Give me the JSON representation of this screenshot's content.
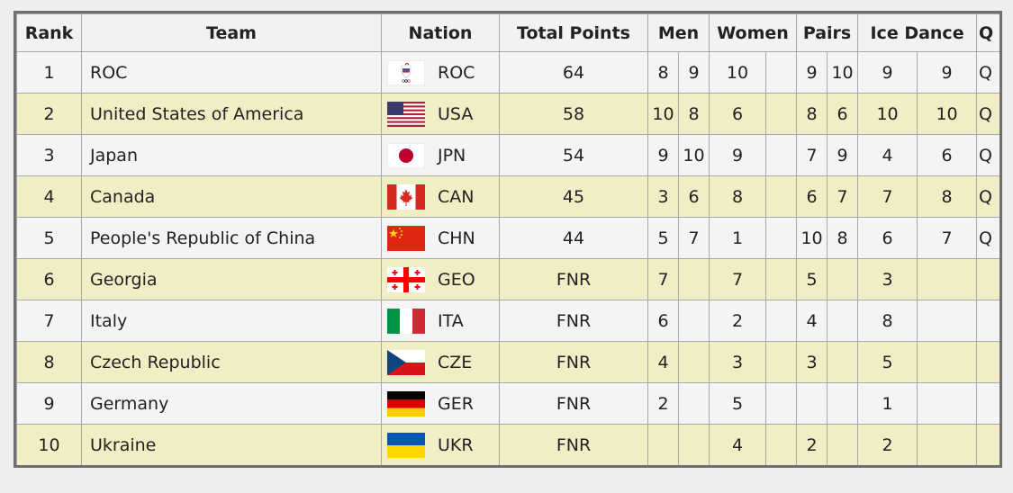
{
  "headers": {
    "rank": "Rank",
    "team": "Team",
    "nation": "Nation",
    "total": "Total Points",
    "men": "Men",
    "women": "Women",
    "pairs": "Pairs",
    "ice_dance": "Ice Dance",
    "q": "Q"
  },
  "rows": [
    {
      "rank": "1",
      "team": "ROC",
      "flag": "roc-flag-icon",
      "code": "ROC",
      "total": "64",
      "men1": "8",
      "men2": "9",
      "women1": "10",
      "women2": "",
      "pairs1": "9",
      "pairs2": "10",
      "ice1": "9",
      "ice2": "9",
      "q": "Q"
    },
    {
      "rank": "2",
      "team": "United States of America",
      "flag": "usa-flag-icon",
      "code": "USA",
      "total": "58",
      "men1": "10",
      "men2": "8",
      "women1": "6",
      "women2": "",
      "pairs1": "8",
      "pairs2": "6",
      "ice1": "10",
      "ice2": "10",
      "q": "Q"
    },
    {
      "rank": "3",
      "team": "Japan",
      "flag": "jpn-flag-icon",
      "code": "JPN",
      "total": "54",
      "men1": "9",
      "men2": "10",
      "women1": "9",
      "women2": "",
      "pairs1": "7",
      "pairs2": "9",
      "ice1": "4",
      "ice2": "6",
      "q": "Q"
    },
    {
      "rank": "4",
      "team": "Canada",
      "flag": "can-flag-icon",
      "code": "CAN",
      "total": "45",
      "men1": "3",
      "men2": "6",
      "women1": "8",
      "women2": "",
      "pairs1": "6",
      "pairs2": "7",
      "ice1": "7",
      "ice2": "8",
      "q": "Q"
    },
    {
      "rank": "5",
      "team": "People's Republic of China",
      "flag": "chn-flag-icon",
      "code": "CHN",
      "total": "44",
      "men1": "5",
      "men2": "7",
      "women1": "1",
      "women2": "",
      "pairs1": "10",
      "pairs2": "8",
      "ice1": "6",
      "ice2": "7",
      "q": "Q"
    },
    {
      "rank": "6",
      "team": "Georgia",
      "flag": "geo-flag-icon",
      "code": "GEO",
      "total": "FNR",
      "men1": "7",
      "men2": "",
      "women1": "7",
      "women2": "",
      "pairs1": "5",
      "pairs2": "",
      "ice1": "3",
      "ice2": "",
      "q": ""
    },
    {
      "rank": "7",
      "team": "Italy",
      "flag": "ita-flag-icon",
      "code": "ITA",
      "total": "FNR",
      "men1": "6",
      "men2": "",
      "women1": "2",
      "women2": "",
      "pairs1": "4",
      "pairs2": "",
      "ice1": "8",
      "ice2": "",
      "q": ""
    },
    {
      "rank": "8",
      "team": "Czech Republic",
      "flag": "cze-flag-icon",
      "code": "CZE",
      "total": "FNR",
      "men1": "4",
      "men2": "",
      "women1": "3",
      "women2": "",
      "pairs1": "3",
      "pairs2": "",
      "ice1": "5",
      "ice2": "",
      "q": ""
    },
    {
      "rank": "9",
      "team": "Germany",
      "flag": "ger-flag-icon",
      "code": "GER",
      "total": "FNR",
      "men1": "2",
      "men2": "",
      "women1": "5",
      "women2": "",
      "pairs1": "",
      "pairs2": "",
      "ice1": "1",
      "ice2": "",
      "q": ""
    },
    {
      "rank": "10",
      "team": "Ukraine",
      "flag": "ukr-flag-icon",
      "code": "UKR",
      "total": "FNR",
      "men1": "",
      "men2": "",
      "women1": "4",
      "women2": "",
      "pairs1": "2",
      "pairs2": "",
      "ice1": "2",
      "ice2": "",
      "q": ""
    }
  ],
  "colors": {
    "odd_row": "#f4f4f4",
    "even_row": "#f1eec5",
    "border": "#a9a9a9",
    "frame": "#6e6e6e"
  }
}
